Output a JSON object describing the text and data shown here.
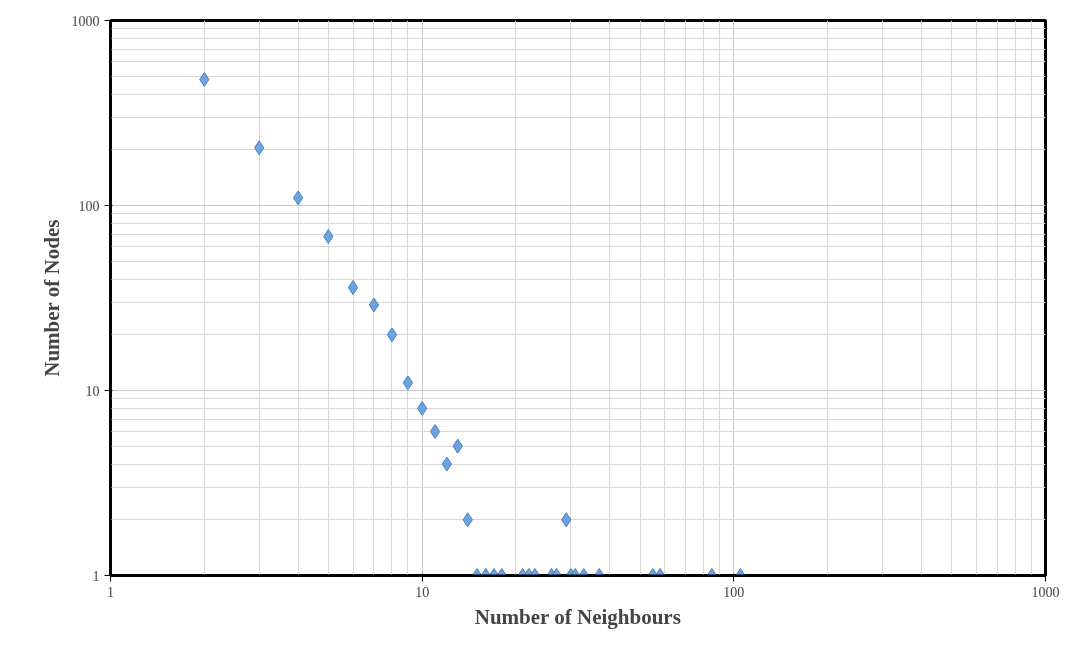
{
  "chart_data": {
    "type": "scatter",
    "xlabel": "Number of Neighbours",
    "ylabel": "Number of Nodes",
    "log": "xy",
    "grid": true,
    "marker": "diamond",
    "xlim": [
      1,
      1000
    ],
    "ylim": [
      1,
      1000
    ],
    "xticks": [
      1,
      10,
      100,
      1000
    ],
    "yticks": [
      1,
      10,
      100,
      1000
    ],
    "series": [
      {
        "color": "#6fa3e0",
        "x": [
          2,
          3,
          4,
          5,
          6,
          7,
          8,
          9,
          10,
          11,
          12,
          13,
          14,
          29,
          15,
          16,
          17,
          18,
          21,
          22,
          23,
          26,
          27,
          30,
          31,
          33,
          37,
          55,
          58,
          85,
          105
        ],
        "values": [
          480,
          205,
          110,
          68,
          36,
          29,
          20,
          11,
          8,
          6,
          4,
          5,
          2,
          2,
          1,
          1,
          1,
          1,
          1,
          1,
          1,
          1,
          1,
          1,
          1,
          1,
          1,
          1,
          1,
          1,
          1
        ]
      }
    ]
  }
}
